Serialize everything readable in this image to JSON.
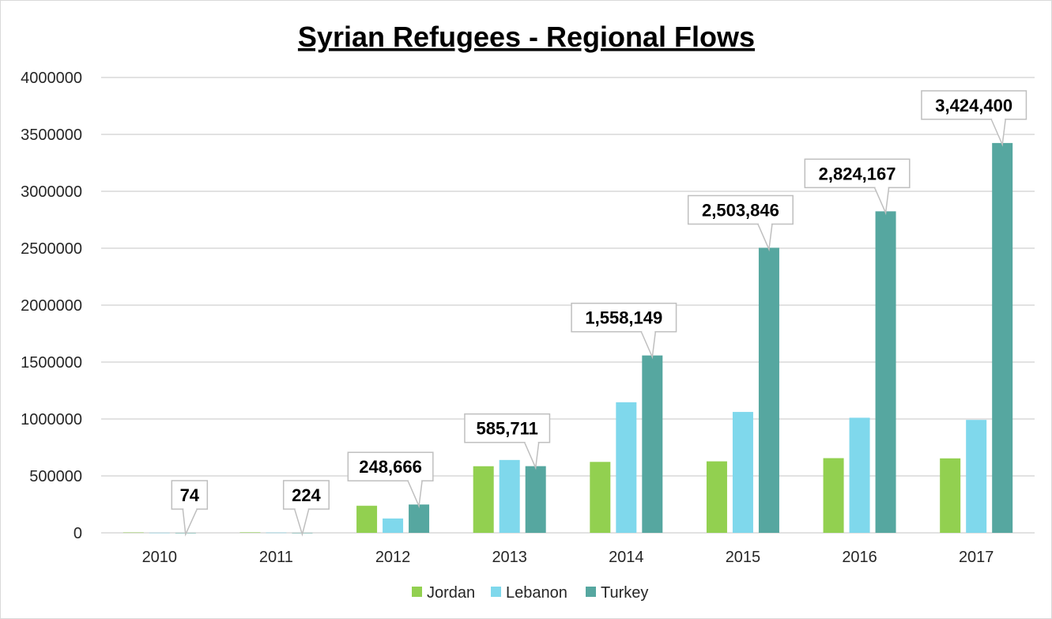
{
  "chart_data": {
    "type": "bar",
    "title": "Syrian Refugees - Regional Flows",
    "categories": [
      "2010",
      "2011",
      "2012",
      "2013",
      "2014",
      "2015",
      "2016",
      "2017"
    ],
    "series": [
      {
        "name": "Jordan",
        "color": "#92d050",
        "values": [
          3000,
          4000,
          238000,
          585000,
          623000,
          628000,
          656000,
          654000
        ]
      },
      {
        "name": "Lebanon",
        "color": "#7fd8ec",
        "values": [
          1000,
          2000,
          126000,
          640000,
          1147000,
          1062000,
          1011000,
          992000
        ]
      },
      {
        "name": "Turkey",
        "color": "#56a7a0",
        "values": [
          74,
          224,
          248666,
          585711,
          1558149,
          2503846,
          2824167,
          3424400
        ]
      }
    ],
    "data_labels": [
      {
        "series": "Turkey",
        "category": "2010",
        "text": "74"
      },
      {
        "series": "Turkey",
        "category": "2011",
        "text": "224"
      },
      {
        "series": "Turkey",
        "category": "2012",
        "text": "248,666"
      },
      {
        "series": "Turkey",
        "category": "2013",
        "text": "585,711"
      },
      {
        "series": "Turkey",
        "category": "2014",
        "text": "1,558,149"
      },
      {
        "series": "Turkey",
        "category": "2015",
        "text": "2,503,846"
      },
      {
        "series": "Turkey",
        "category": "2016",
        "text": "2,824,167"
      },
      {
        "series": "Turkey",
        "category": "2017",
        "text": "3,424,400"
      }
    ],
    "yticks": [
      "0",
      "500000",
      "1000000",
      "1500000",
      "2000000",
      "2500000",
      "3000000",
      "3500000",
      "4000000"
    ],
    "ylim": [
      0,
      4000000
    ],
    "grid": true,
    "legend": "bottom",
    "xlabel": "",
    "ylabel": ""
  }
}
